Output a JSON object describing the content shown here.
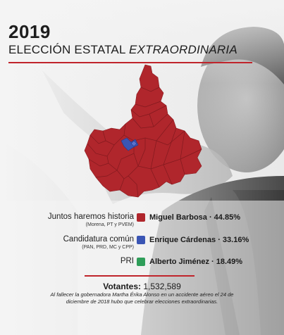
{
  "header": {
    "year": "2019",
    "title_main": "ELECCIÓN ESTATAL",
    "title_italic": "EXTRAORDINARIA"
  },
  "colors": {
    "red": "#b0262c",
    "blue": "#3a55b4",
    "green": "#2f9e5a",
    "accent_rule": "#c0242b"
  },
  "legend": [
    {
      "coalition": "Juntos haremos historia",
      "parties": "(Morena, PT y PVEM)",
      "candidate": "Miguel Barbosa · 44.85%",
      "color": "#b0262c"
    },
    {
      "coalition": "Candidatura común",
      "parties": "(PAN, PRD, MC y CPP)",
      "candidate": "Enrique Cárdenas · 33.16%",
      "color": "#3a55b4"
    },
    {
      "coalition": "PRI",
      "parties": "",
      "candidate": "Alberto Jiménez · 18.49%",
      "color": "#2f9e5a"
    }
  ],
  "footer": {
    "votes_label": "Votantes:",
    "votes_value": "1,532,589",
    "note": "Al fallecer la gobernadora Martha Érika Alonso en un accidente aéreo el 24 de diciembre de 2018 hubo que celebrar elecciones extraordinarias."
  }
}
